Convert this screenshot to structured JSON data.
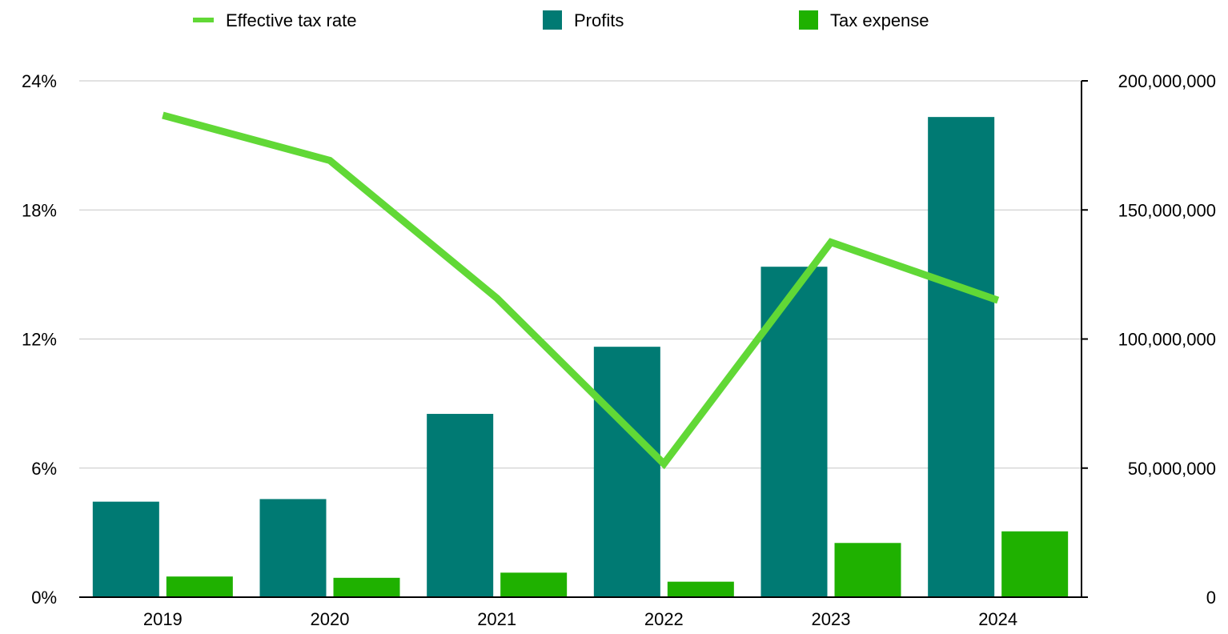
{
  "chart_data": {
    "type": "bar",
    "title": "",
    "xlabel": "",
    "categories": [
      "2019",
      "2020",
      "2021",
      "2022",
      "2023",
      "2024"
    ],
    "series": [
      {
        "name": "Profits",
        "kind": "bar",
        "axis": "right",
        "color": "#007a73",
        "values": [
          37000000,
          38000000,
          71000000,
          97000000,
          128000000,
          186000000
        ]
      },
      {
        "name": "Tax expense",
        "kind": "bar",
        "axis": "right",
        "color": "#1fb100",
        "values": [
          8000000,
          7500000,
          9500000,
          6000000,
          21000000,
          25500000
        ]
      },
      {
        "name": "Effective tax rate",
        "kind": "line",
        "axis": "left",
        "color": "#61d836",
        "values": [
          22.4,
          20.3,
          13.9,
          6.2,
          16.5,
          13.8
        ]
      }
    ],
    "y_left": {
      "ylim": [
        0,
        24
      ],
      "ticks": [
        0,
        6,
        12,
        18,
        24
      ],
      "tick_labels": [
        "0%",
        "6%",
        "12%",
        "18%",
        "24%"
      ]
    },
    "y_right": {
      "ylim": [
        0,
        200000000
      ],
      "ticks": [
        0,
        50000000,
        100000000,
        150000000,
        200000000
      ],
      "tick_labels": [
        "0",
        "50,000,000",
        "100,000,000",
        "150,000,000",
        "200,000,000"
      ]
    },
    "grid": true,
    "legend": {
      "position": "top",
      "entries": [
        "Effective tax rate",
        "Profits",
        "Tax expense"
      ]
    }
  }
}
